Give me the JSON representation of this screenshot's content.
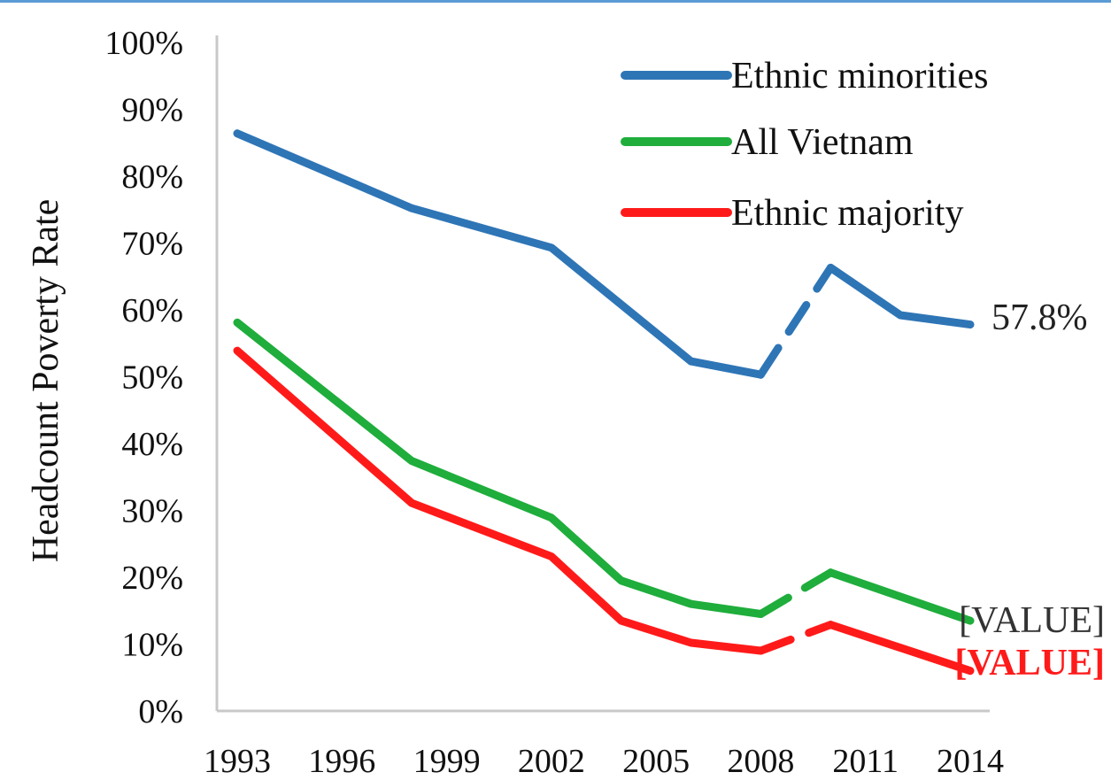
{
  "chart_data": {
    "type": "line",
    "ylabel": "Headcount Poverty Rate",
    "xlabel": "",
    "ylim": [
      0,
      100
    ],
    "y_ticks": [
      "0%",
      "10%",
      "20%",
      "30%",
      "40%",
      "50%",
      "60%",
      "70%",
      "80%",
      "90%",
      "100%"
    ],
    "x_ticks": [
      "1993",
      "1996",
      "1999",
      "2002",
      "2005",
      "2008",
      "2011",
      "2014"
    ],
    "xlim": [
      1993,
      2014
    ],
    "legend_position": "top-right",
    "gap_segment": [
      2008,
      2010
    ],
    "series": [
      {
        "name": "Ethnic minorities",
        "color": "#2e75b6",
        "points": [
          [
            1993,
            86.4
          ],
          [
            1998,
            75.2
          ],
          [
            2002,
            69.3
          ],
          [
            2006,
            52.3
          ],
          [
            2008,
            50.3
          ],
          [
            2010,
            66.3
          ],
          [
            2012,
            59.2
          ],
          [
            2014,
            57.8
          ]
        ],
        "end_label": "57.8%",
        "end_label_color": "#222222"
      },
      {
        "name": "All Vietnam",
        "color": "#1fad3c",
        "points": [
          [
            1993,
            58.1
          ],
          [
            1998,
            37.4
          ],
          [
            2002,
            28.9
          ],
          [
            2004,
            19.5
          ],
          [
            2006,
            16.0
          ],
          [
            2008,
            14.5
          ],
          [
            2010,
            20.7
          ],
          [
            2014,
            13.5
          ]
        ],
        "end_label": "[VALUE]",
        "end_label_color": "#333333"
      },
      {
        "name": "Ethnic majority",
        "color": "#ff1a1a",
        "points": [
          [
            1993,
            53.9
          ],
          [
            1998,
            31.1
          ],
          [
            2002,
            23.1
          ],
          [
            2004,
            13.5
          ],
          [
            2006,
            10.2
          ],
          [
            2008,
            9.0
          ],
          [
            2010,
            12.9
          ],
          [
            2014,
            6.0
          ]
        ],
        "end_label": "[VALUE]",
        "end_label_color": "#ff1a1a"
      }
    ]
  }
}
